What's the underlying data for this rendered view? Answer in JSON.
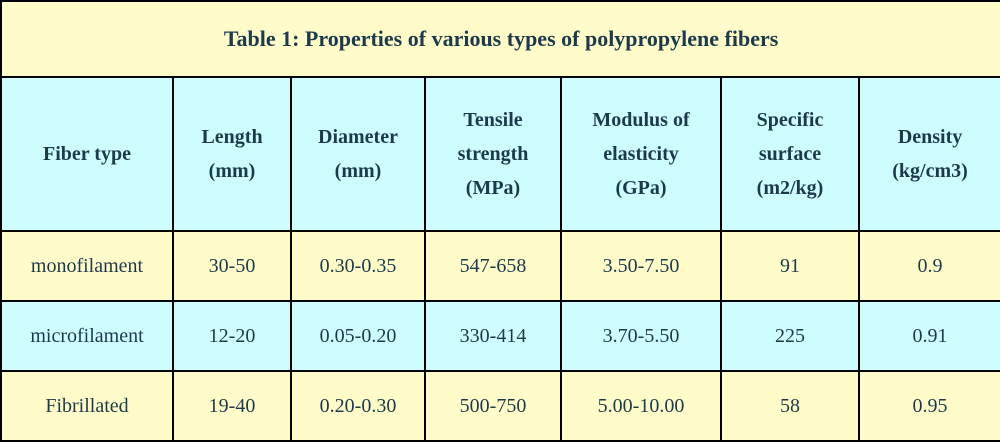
{
  "table": {
    "title": "Table 1: Properties of various types of polypropylene fibers",
    "headers": [
      [
        "Fiber type"
      ],
      [
        "Length",
        "(mm)"
      ],
      [
        "Diameter",
        "(mm)"
      ],
      [
        "Tensile",
        "strength",
        "(MPa)"
      ],
      [
        "Modulus of",
        "elasticity",
        "(GPa)"
      ],
      [
        "Specific",
        "surface",
        "(m2/kg)"
      ],
      [
        "Density",
        "(kg/cm3)"
      ]
    ],
    "rows": [
      [
        "monofilament",
        "30-50",
        "0.30-0.35",
        "547-658",
        "3.50-7.50",
        "91",
        "0.9"
      ],
      [
        "microfilament",
        "12-20",
        "0.05-0.20",
        "330-414",
        "3.70-5.50",
        "225",
        "0.91"
      ],
      [
        "Fibrillated",
        "19-40",
        "0.20-0.30",
        "500-750",
        "5.00-10.00",
        "58",
        "0.95"
      ]
    ]
  },
  "colors": {
    "title_bg": "#fffcc9",
    "header_bg": "#cdfdfe",
    "row_yellow": "#fffcc9",
    "row_cyan": "#cdfdfe",
    "border": "#000000"
  }
}
